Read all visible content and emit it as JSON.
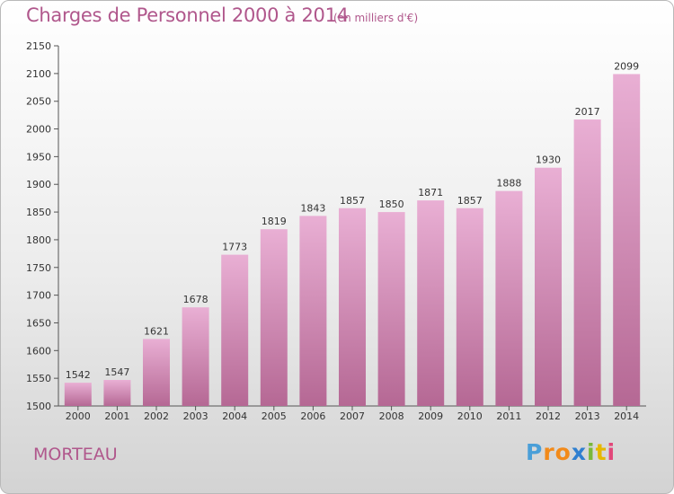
{
  "title": "Charges de Personnel 2000 à 2014",
  "subtitle": "(en milliers d'€)",
  "city": "MORTEAU",
  "logo": {
    "letters": [
      "P",
      "r",
      "o",
      "x",
      "i",
      "t",
      "i"
    ],
    "colors": [
      "#4a9fd8",
      "#f28a1a",
      "#f28a1a",
      "#2f7fd0",
      "#7ab83a",
      "#e6b800",
      "#e2477a"
    ]
  },
  "colors": {
    "bar_top": "#e9afd4",
    "bar_bottom": "#b56894",
    "title": "#b0578c"
  },
  "chart_data": {
    "type": "bar",
    "title": "Charges de Personnel 2000 à 2014",
    "subtitle": "(en milliers d'€)",
    "categories": [
      "2000",
      "2001",
      "2002",
      "2003",
      "2004",
      "2005",
      "2006",
      "2007",
      "2008",
      "2009",
      "2010",
      "2011",
      "2012",
      "2013",
      "2014"
    ],
    "values": [
      1542,
      1547,
      1621,
      1678,
      1773,
      1819,
      1843,
      1857,
      1850,
      1871,
      1857,
      1888,
      1930,
      2017,
      2099
    ],
    "ylim": [
      1500,
      2150
    ],
    "yticks": [
      1500,
      1550,
      1600,
      1650,
      1700,
      1750,
      1800,
      1850,
      1900,
      1950,
      2000,
      2050,
      2100,
      2150
    ],
    "grid": false,
    "data_labels": true
  }
}
